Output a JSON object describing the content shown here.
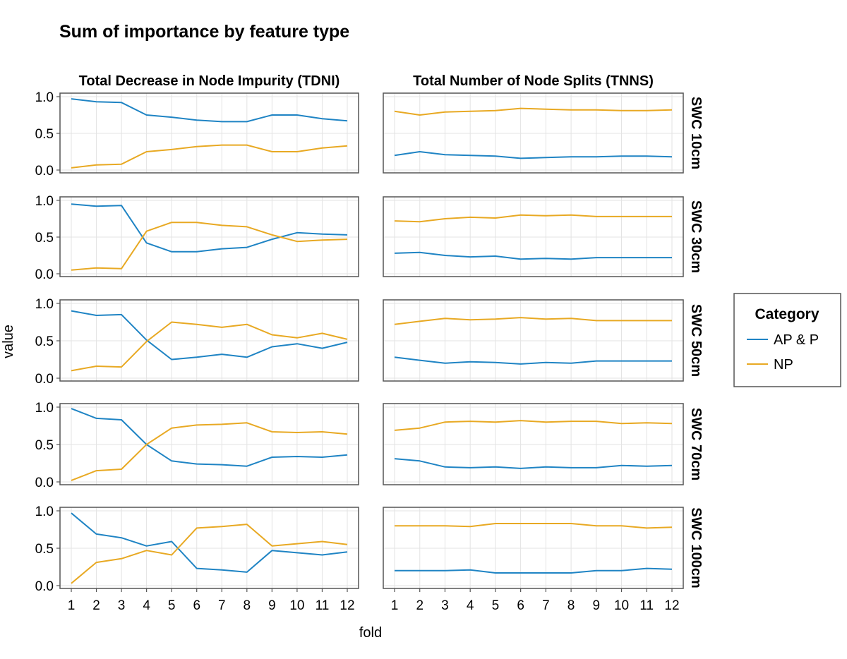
{
  "chart_data": {
    "type": "line",
    "title": "Sum of importance by feature type",
    "xlabel": "fold",
    "ylabel": "value",
    "x": [
      1,
      2,
      3,
      4,
      5,
      6,
      7,
      8,
      9,
      10,
      11,
      12
    ],
    "x_ticks": [
      "1",
      "2",
      "3",
      "4",
      "5",
      "6",
      "7",
      "8",
      "9",
      "10",
      "11",
      "12"
    ],
    "ylim": [
      0,
      1
    ],
    "y_ticks": [
      "0.0",
      "0.5",
      "1.0"
    ],
    "grid": true,
    "columns": [
      "Total Decrease in Node Impurity (TDNI)",
      "Total Number of Node Splits (TNNS)"
    ],
    "rows": [
      "SWC 10cm",
      "SWC 30cm",
      "SWC 50cm",
      "SWC 70cm",
      "SWC 100cm"
    ],
    "legend": {
      "title": "Category",
      "position": "right",
      "entries": [
        {
          "name": "AP & P",
          "color": "#1f84c4"
        },
        {
          "name": "NP",
          "color": "#e8a923"
        }
      ]
    },
    "panels": [
      {
        "row": "SWC 10cm",
        "column": "Total Decrease in Node Impurity (TDNI)",
        "series": [
          {
            "name": "AP & P",
            "values": [
              0.97,
              0.93,
              0.92,
              0.75,
              0.72,
              0.68,
              0.66,
              0.66,
              0.75,
              0.75,
              0.7,
              0.67
            ]
          },
          {
            "name": "NP",
            "values": [
              0.03,
              0.07,
              0.08,
              0.25,
              0.28,
              0.32,
              0.34,
              0.34,
              0.25,
              0.25,
              0.3,
              0.33
            ]
          }
        ]
      },
      {
        "row": "SWC 10cm",
        "column": "Total Number of Node Splits (TNNS)",
        "series": [
          {
            "name": "AP & P",
            "values": [
              0.2,
              0.25,
              0.21,
              0.2,
              0.19,
              0.16,
              0.17,
              0.18,
              0.18,
              0.19,
              0.19,
              0.18
            ]
          },
          {
            "name": "NP",
            "values": [
              0.8,
              0.75,
              0.79,
              0.8,
              0.81,
              0.84,
              0.83,
              0.82,
              0.82,
              0.81,
              0.81,
              0.82
            ]
          }
        ]
      },
      {
        "row": "SWC 30cm",
        "column": "Total Decrease in Node Impurity (TDNI)",
        "series": [
          {
            "name": "AP & P",
            "values": [
              0.95,
              0.92,
              0.93,
              0.42,
              0.3,
              0.3,
              0.34,
              0.36,
              0.47,
              0.56,
              0.54,
              0.53
            ]
          },
          {
            "name": "NP",
            "values": [
              0.05,
              0.08,
              0.07,
              0.58,
              0.7,
              0.7,
              0.66,
              0.64,
              0.53,
              0.44,
              0.46,
              0.47
            ]
          }
        ]
      },
      {
        "row": "SWC 30cm",
        "column": "Total Number of Node Splits (TNNS)",
        "series": [
          {
            "name": "AP & P",
            "values": [
              0.28,
              0.29,
              0.25,
              0.23,
              0.24,
              0.2,
              0.21,
              0.2,
              0.22,
              0.22,
              0.22,
              0.22
            ]
          },
          {
            "name": "NP",
            "values": [
              0.72,
              0.71,
              0.75,
              0.77,
              0.76,
              0.8,
              0.79,
              0.8,
              0.78,
              0.78,
              0.78,
              0.78
            ]
          }
        ]
      },
      {
        "row": "SWC 50cm",
        "column": "Total Decrease in Node Impurity (TDNI)",
        "series": [
          {
            "name": "AP & P",
            "values": [
              0.9,
              0.84,
              0.85,
              0.51,
              0.25,
              0.28,
              0.32,
              0.28,
              0.42,
              0.46,
              0.4,
              0.48
            ]
          },
          {
            "name": "NP",
            "values": [
              0.1,
              0.16,
              0.15,
              0.49,
              0.75,
              0.72,
              0.68,
              0.72,
              0.58,
              0.54,
              0.6,
              0.52
            ]
          }
        ]
      },
      {
        "row": "SWC 50cm",
        "column": "Total Number of Node Splits (TNNS)",
        "series": [
          {
            "name": "AP & P",
            "values": [
              0.28,
              0.24,
              0.2,
              0.22,
              0.21,
              0.19,
              0.21,
              0.2,
              0.23,
              0.23,
              0.23,
              0.23
            ]
          },
          {
            "name": "NP",
            "values": [
              0.72,
              0.76,
              0.8,
              0.78,
              0.79,
              0.81,
              0.79,
              0.8,
              0.77,
              0.77,
              0.77,
              0.77
            ]
          }
        ]
      },
      {
        "row": "SWC 70cm",
        "column": "Total Decrease in Node Impurity (TDNI)",
        "series": [
          {
            "name": "AP & P",
            "values": [
              0.98,
              0.85,
              0.83,
              0.5,
              0.28,
              0.24,
              0.23,
              0.21,
              0.33,
              0.34,
              0.33,
              0.36
            ]
          },
          {
            "name": "NP",
            "values": [
              0.02,
              0.15,
              0.17,
              0.5,
              0.72,
              0.76,
              0.77,
              0.79,
              0.67,
              0.66,
              0.67,
              0.64
            ]
          }
        ]
      },
      {
        "row": "SWC 70cm",
        "column": "Total Number of Node Splits (TNNS)",
        "series": [
          {
            "name": "AP & P",
            "values": [
              0.31,
              0.28,
              0.2,
              0.19,
              0.2,
              0.18,
              0.2,
              0.19,
              0.19,
              0.22,
              0.21,
              0.22
            ]
          },
          {
            "name": "NP",
            "values": [
              0.69,
              0.72,
              0.8,
              0.81,
              0.8,
              0.82,
              0.8,
              0.81,
              0.81,
              0.78,
              0.79,
              0.78
            ]
          }
        ]
      },
      {
        "row": "SWC 100cm",
        "column": "Total Decrease in Node Impurity (TDNI)",
        "series": [
          {
            "name": "AP & P",
            "values": [
              0.97,
              0.69,
              0.64,
              0.53,
              0.59,
              0.23,
              0.21,
              0.18,
              0.47,
              0.44,
              0.41,
              0.45
            ]
          },
          {
            "name": "NP",
            "values": [
              0.03,
              0.31,
              0.36,
              0.47,
              0.41,
              0.77,
              0.79,
              0.82,
              0.53,
              0.56,
              0.59,
              0.55
            ]
          }
        ]
      },
      {
        "row": "SWC 100cm",
        "column": "Total Number of Node Splits (TNNS)",
        "series": [
          {
            "name": "AP & P",
            "values": [
              0.2,
              0.2,
              0.2,
              0.21,
              0.17,
              0.17,
              0.17,
              0.17,
              0.2,
              0.2,
              0.23,
              0.22
            ]
          },
          {
            "name": "NP",
            "values": [
              0.8,
              0.8,
              0.8,
              0.79,
              0.83,
              0.83,
              0.83,
              0.83,
              0.8,
              0.8,
              0.77,
              0.78
            ]
          }
        ]
      }
    ]
  }
}
